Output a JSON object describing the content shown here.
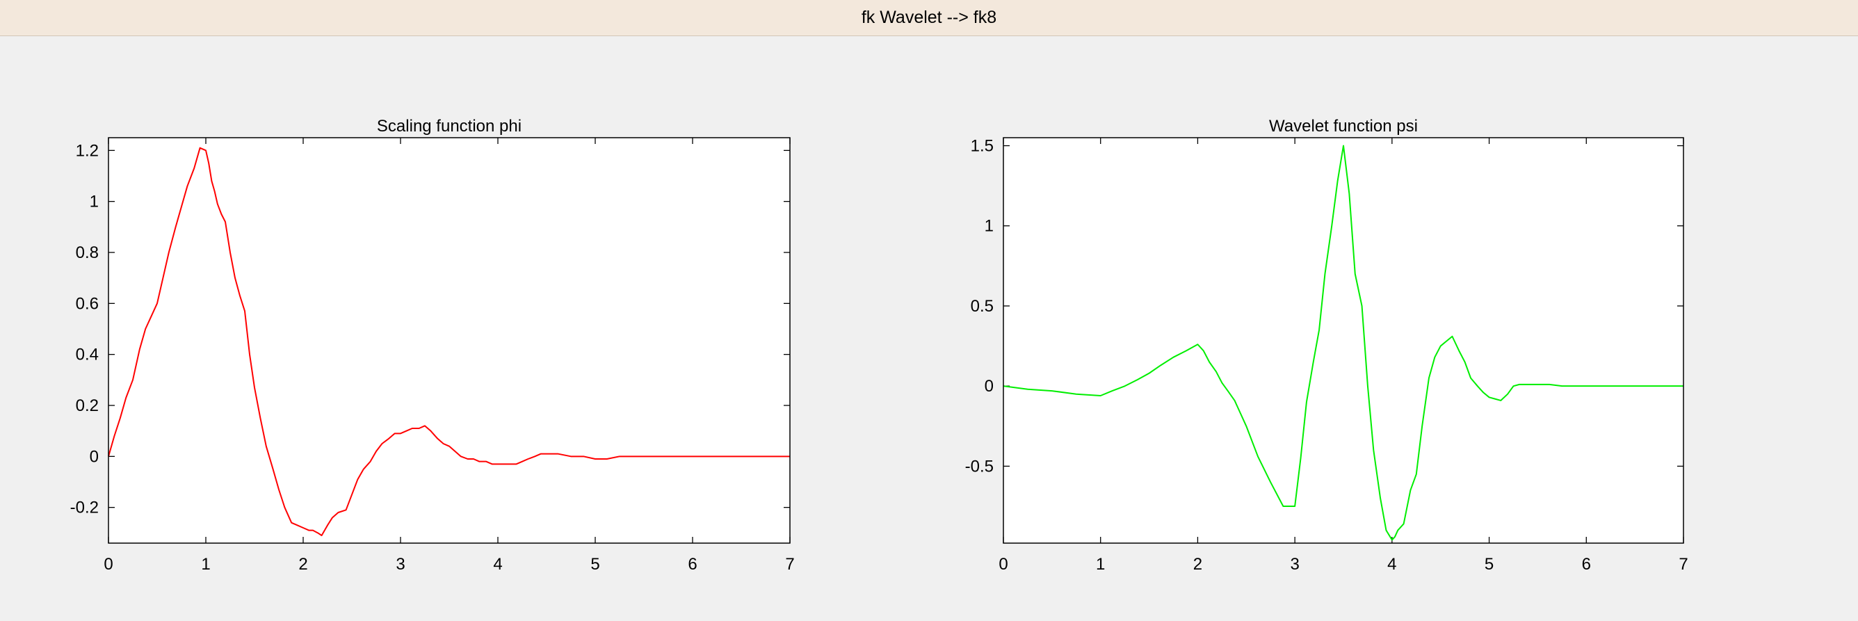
{
  "window": {
    "title": "fk Wavelet -->  fk8"
  },
  "chart_data": [
    {
      "type": "line",
      "title": "Scaling function phi",
      "xlabel": "",
      "ylabel": "",
      "xlim": [
        0,
        7
      ],
      "ylim": [
        -0.34,
        1.25
      ],
      "xticks": [
        0,
        1,
        2,
        3,
        4,
        5,
        6,
        7
      ],
      "yticks": [
        -0.2,
        0,
        0.2,
        0.4,
        0.6,
        0.8,
        1,
        1.2
      ],
      "xtick_labels": [
        "0",
        "1",
        "2",
        "3",
        "4",
        "5",
        "6",
        "7"
      ],
      "ytick_labels": [
        "-0.2",
        "0",
        "0.2",
        "0.4",
        "0.6",
        "0.8",
        "1",
        "1.2"
      ],
      "grid": false,
      "color": "#ff0000",
      "series": [
        {
          "x": [
            0,
            0.06,
            0.12,
            0.18,
            0.25,
            0.32,
            0.38,
            0.44,
            0.5,
            0.56,
            0.62,
            0.69,
            0.75,
            0.81,
            0.88,
            0.94,
            1.0,
            1.03,
            1.06,
            1.09,
            1.12,
            1.16,
            1.2,
            1.25,
            1.3,
            1.35,
            1.4,
            1.45,
            1.5,
            1.56,
            1.62,
            1.69,
            1.75,
            1.81,
            1.88,
            1.94,
            2.0,
            2.06,
            2.1,
            2.15,
            2.19,
            2.25,
            2.3,
            2.36,
            2.44,
            2.5,
            2.56,
            2.62,
            2.69,
            2.75,
            2.81,
            2.88,
            2.94,
            3.0,
            3.06,
            3.12,
            3.19,
            3.25,
            3.31,
            3.38,
            3.44,
            3.5,
            3.56,
            3.62,
            3.69,
            3.75,
            3.81,
            3.88,
            3.94,
            4.0,
            4.06,
            4.12,
            4.19,
            4.25,
            4.31,
            4.38,
            4.44,
            4.5,
            4.56,
            4.62,
            4.75,
            4.88,
            5.0,
            5.12,
            5.25,
            5.5,
            5.75,
            6.0,
            6.5,
            7.0
          ],
          "y": [
            0.0,
            0.08,
            0.15,
            0.23,
            0.3,
            0.42,
            0.5,
            0.55,
            0.6,
            0.7,
            0.8,
            0.9,
            0.98,
            1.06,
            1.13,
            1.21,
            1.2,
            1.15,
            1.08,
            1.04,
            0.99,
            0.95,
            0.92,
            0.8,
            0.7,
            0.63,
            0.57,
            0.4,
            0.27,
            0.15,
            0.04,
            -0.05,
            -0.13,
            -0.2,
            -0.26,
            -0.27,
            -0.28,
            -0.29,
            -0.29,
            -0.3,
            -0.31,
            -0.27,
            -0.24,
            -0.22,
            -0.21,
            -0.15,
            -0.09,
            -0.05,
            -0.02,
            0.02,
            0.05,
            0.07,
            0.09,
            0.09,
            0.1,
            0.11,
            0.11,
            0.12,
            0.1,
            0.07,
            0.05,
            0.04,
            0.02,
            0.0,
            -0.01,
            -0.01,
            -0.02,
            -0.02,
            -0.03,
            -0.03,
            -0.03,
            -0.03,
            -0.03,
            -0.02,
            -0.01,
            0.0,
            0.01,
            0.01,
            0.01,
            0.01,
            0.0,
            0.0,
            -0.01,
            -0.01,
            0.0,
            0.0,
            0.0,
            0.0,
            0.0,
            0.0
          ]
        }
      ]
    },
    {
      "type": "line",
      "title": "Wavelet function psi",
      "xlabel": "",
      "ylabel": "",
      "xlim": [
        0,
        7
      ],
      "ylim": [
        -0.98,
        1.55
      ],
      "xticks": [
        0,
        1,
        2,
        3,
        4,
        5,
        6,
        7
      ],
      "yticks": [
        -0.5,
        0,
        0.5,
        1,
        1.5
      ],
      "xtick_labels": [
        "0",
        "1",
        "2",
        "3",
        "4",
        "5",
        "6",
        "7"
      ],
      "ytick_labels": [
        "-0.5",
        "0",
        "0.5",
        "1",
        "1.5"
      ],
      "grid": false,
      "color": "#00ee00",
      "series": [
        {
          "x": [
            0,
            0.25,
            0.5,
            0.75,
            1.0,
            1.12,
            1.25,
            1.38,
            1.5,
            1.62,
            1.75,
            1.88,
            2.0,
            2.06,
            2.12,
            2.19,
            2.25,
            2.31,
            2.38,
            2.5,
            2.62,
            2.75,
            2.88,
            3.0,
            3.06,
            3.12,
            3.19,
            3.25,
            3.31,
            3.38,
            3.44,
            3.5,
            3.56,
            3.62,
            3.69,
            3.75,
            3.81,
            3.88,
            3.94,
            4.0,
            4.03,
            4.06,
            4.12,
            4.19,
            4.25,
            4.31,
            4.38,
            4.44,
            4.5,
            4.56,
            4.62,
            4.69,
            4.75,
            4.81,
            4.88,
            4.94,
            5.0,
            5.06,
            5.12,
            5.19,
            5.25,
            5.31,
            5.38,
            5.5,
            5.62,
            5.75,
            6.0,
            6.5,
            7.0
          ],
          "y": [
            0.0,
            -0.02,
            -0.03,
            -0.05,
            -0.06,
            -0.03,
            0.0,
            0.04,
            0.08,
            0.13,
            0.18,
            0.22,
            0.26,
            0.22,
            0.15,
            0.09,
            0.02,
            -0.03,
            -0.09,
            -0.25,
            -0.44,
            -0.6,
            -0.75,
            -0.75,
            -0.45,
            -0.1,
            0.15,
            0.35,
            0.7,
            1.0,
            1.28,
            1.5,
            1.2,
            0.7,
            0.5,
            0.0,
            -0.4,
            -0.7,
            -0.9,
            -0.96,
            -0.94,
            -0.9,
            -0.86,
            -0.65,
            -0.55,
            -0.25,
            0.05,
            0.18,
            0.25,
            0.28,
            0.31,
            0.22,
            0.15,
            0.05,
            0.0,
            -0.04,
            -0.07,
            -0.08,
            -0.09,
            -0.05,
            0.0,
            0.01,
            0.01,
            0.01,
            0.01,
            0.0,
            0.0,
            0.0,
            0.0
          ]
        }
      ]
    }
  ]
}
